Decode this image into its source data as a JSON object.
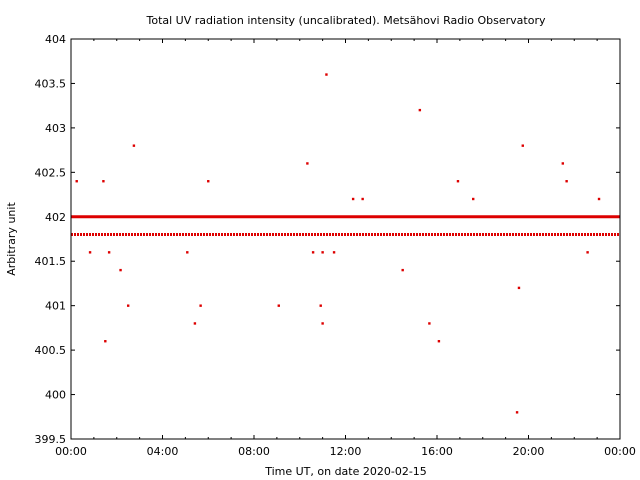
{
  "chart_data": {
    "type": "scatter",
    "title": "Total UV radiation intensity (uncalibrated). Metsähovi Radio Observatory",
    "xlabel": "Time UT, on date 2020-02-15",
    "ylabel": "Arbitrary unit",
    "xlim": [
      "00:00",
      "24:00"
    ],
    "ylim": [
      399.5,
      404
    ],
    "x_ticks": [
      "00:00",
      "04:00",
      "08:00",
      "12:00",
      "16:00",
      "20:00",
      "00:00"
    ],
    "y_ticks": [
      "399.5",
      "400",
      "400.5",
      "401",
      "401.5",
      "402",
      "402.5",
      "403",
      "403.5",
      "404"
    ],
    "grid": false,
    "legend": "none",
    "color": "#dd0000",
    "series": [
      {
        "baseline_402": {
          "value": 402,
          "from": "00:00",
          "to": "24:00"
        },
        "baseline_401_8": {
          "value": 401.8,
          "from": "00:00",
          "to": "24:00"
        },
        "points": [
          {
            "x": "00:15",
            "y": 402.4
          },
          {
            "x": "00:50",
            "y": 401.6
          },
          {
            "x": "01:25",
            "y": 402.4
          },
          {
            "x": "01:30",
            "y": 400.6
          },
          {
            "x": "01:40",
            "y": 401.6
          },
          {
            "x": "02:10",
            "y": 401.4
          },
          {
            "x": "02:30",
            "y": 401.0
          },
          {
            "x": "02:45",
            "y": 402.8
          },
          {
            "x": "05:05",
            "y": 401.6
          },
          {
            "x": "05:25",
            "y": 400.8
          },
          {
            "x": "05:40",
            "y": 401.0
          },
          {
            "x": "06:00",
            "y": 402.4
          },
          {
            "x": "09:05",
            "y": 401.0
          },
          {
            "x": "10:20",
            "y": 402.6
          },
          {
            "x": "10:35",
            "y": 401.6
          },
          {
            "x": "10:55",
            "y": 401.0
          },
          {
            "x": "11:00",
            "y": 400.8
          },
          {
            "x": "11:00",
            "y": 401.6
          },
          {
            "x": "11:10",
            "y": 403.6
          },
          {
            "x": "11:30",
            "y": 401.6
          },
          {
            "x": "12:20",
            "y": 402.2
          },
          {
            "x": "12:45",
            "y": 402.2
          },
          {
            "x": "14:30",
            "y": 401.4
          },
          {
            "x": "15:15",
            "y": 403.2
          },
          {
            "x": "15:40",
            "y": 400.8
          },
          {
            "x": "16:05",
            "y": 400.6
          },
          {
            "x": "16:55",
            "y": 402.4
          },
          {
            "x": "17:35",
            "y": 402.2
          },
          {
            "x": "19:30",
            "y": 399.8
          },
          {
            "x": "19:35",
            "y": 401.2
          },
          {
            "x": "19:45",
            "y": 402.8
          },
          {
            "x": "21:30",
            "y": 402.6
          },
          {
            "x": "21:40",
            "y": 402.4
          },
          {
            "x": "22:35",
            "y": 401.6
          },
          {
            "x": "23:05",
            "y": 402.2
          }
        ]
      }
    ]
  }
}
